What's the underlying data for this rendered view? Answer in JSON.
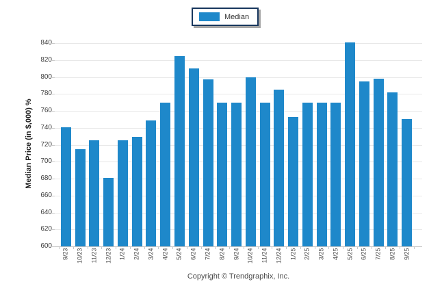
{
  "legend": {
    "label": "Median"
  },
  "y_axis": {
    "title": "Median Price (in $,000) %"
  },
  "footer": {
    "copyright": "Copyright © Trendgraphix, Inc."
  },
  "colors": {
    "bar": "#1e88ca",
    "legend_border": "#17365d",
    "gridline": "#e8e8e8",
    "axis_line": "#c6c6c6"
  },
  "chart_data": {
    "type": "bar",
    "title": "",
    "categories": [
      "9/23",
      "10/23",
      "11/23",
      "12/23",
      "1/24",
      "2/24",
      "3/24",
      "4/24",
      "5/24",
      "6/24",
      "7/24",
      "8/24",
      "9/24",
      "10/24",
      "11/24",
      "12/24",
      "1/25",
      "2/25",
      "3/25",
      "4/25",
      "5/25",
      "6/25",
      "7/25",
      "8/25",
      "9/25"
    ],
    "series": [
      {
        "name": "Median",
        "values": [
          741,
          715,
          725,
          681,
          725,
          729,
          749,
          770,
          825,
          810,
          797,
          770,
          770,
          800,
          770,
          785,
          753,
          770,
          770,
          770,
          841,
          795,
          798,
          782,
          750
        ]
      }
    ],
    "xlabel": "",
    "ylabel": "Median Price (in $,000) %",
    "ylim": [
      600,
      840
    ],
    "ytick_step": 20,
    "grid": true,
    "legend_position": "top-center"
  }
}
